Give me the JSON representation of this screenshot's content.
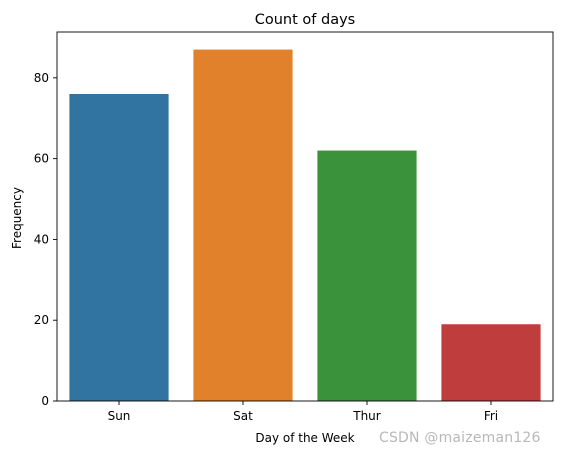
{
  "chart_data": {
    "type": "bar",
    "title": "Count of days",
    "xlabel": "Day of the Week",
    "ylabel": "Frequency",
    "categories": [
      "Sun",
      "Sat",
      "Thur",
      "Fri"
    ],
    "values": [
      76,
      87,
      62,
      19
    ],
    "colors": [
      "#3274a1",
      "#e1812c",
      "#3a923a",
      "#c03d3e"
    ],
    "ylim": [
      0,
      91.35
    ],
    "yticks": [
      0,
      20,
      40,
      60,
      80
    ],
    "grid": false,
    "legend": "none"
  },
  "watermark": "CSDN @maizeman126"
}
